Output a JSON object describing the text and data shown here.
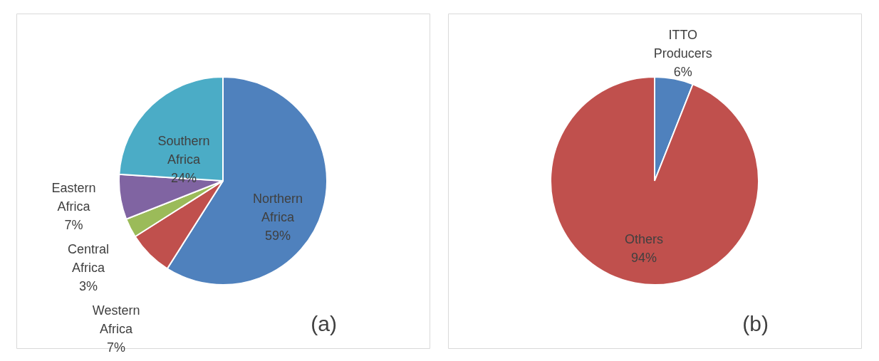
{
  "chart_data": [
    {
      "type": "pie",
      "categories": [
        "Northern Africa",
        "Western Africa",
        "Central Africa",
        "Eastern Africa",
        "Southern Africa"
      ],
      "values": [
        59,
        7,
        3,
        7,
        24
      ],
      "value_labels": [
        "59%",
        "7%",
        "3%",
        "7%",
        "24%"
      ],
      "data_labels": true,
      "colors": [
        "#4f81bd",
        "#c0504d",
        "#9bbb59",
        "#8064a2",
        "#4bacc6"
      ],
      "legend": false,
      "annotations": [
        "(a)"
      ]
    },
    {
      "type": "pie",
      "categories": [
        "ITTO Producers",
        "Others"
      ],
      "values": [
        6,
        94
      ],
      "value_labels": [
        "6%",
        "94%"
      ],
      "data_labels": true,
      "colors": [
        "#4f81bd",
        "#c0504d"
      ],
      "legend": false,
      "annotations": [
        "(b)"
      ]
    }
  ]
}
